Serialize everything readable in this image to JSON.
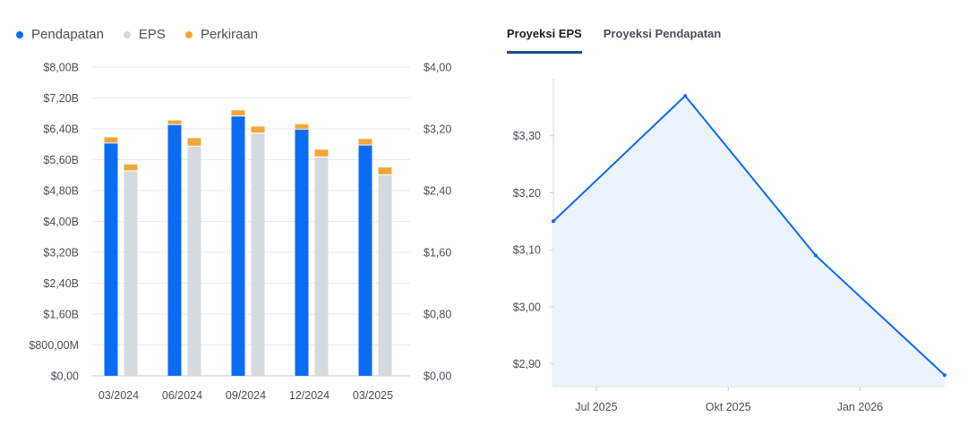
{
  "legend": {
    "items": [
      {
        "label": "Pendapatan",
        "color": "#0a6cf2"
      },
      {
        "label": "EPS",
        "color": "#d7dadd"
      },
      {
        "label": "Perkiraan",
        "color": "#f0a73a"
      }
    ]
  },
  "tabs": [
    {
      "label": "Proyeksi EPS",
      "active": true
    },
    {
      "label": "Proyeksi Pendapatan",
      "active": false
    }
  ],
  "chart_data": [
    {
      "type": "bar",
      "categories": [
        "03/2024",
        "06/2024",
        "09/2024",
        "12/2024",
        "03/2025"
      ],
      "left_axis": {
        "min": 0,
        "max": 8,
        "ticks": [
          "$0,00",
          "$800,00M",
          "$1,60B",
          "$2,40B",
          "$3,20B",
          "$4,00B",
          "$4,80B",
          "$5,60B",
          "$6,40B",
          "$7,20B",
          "$8,00B"
        ]
      },
      "right_axis": {
        "min": 0,
        "max": 4,
        "ticks": [
          "$0,00",
          "$0,80",
          "$1,60",
          "$2,40",
          "$3,20",
          "$4,00"
        ]
      },
      "series": [
        {
          "name": "Pendapatan",
          "axis": "left",
          "values": [
            6.02,
            6.5,
            6.72,
            6.38,
            5.97
          ],
          "estimates": [
            6.18,
            6.62,
            6.88,
            6.52,
            6.14
          ]
        },
        {
          "name": "EPS",
          "axis": "right",
          "values": [
            2.65,
            2.97,
            3.14,
            2.83,
            2.6
          ],
          "estimates": [
            2.74,
            3.08,
            3.23,
            2.93,
            2.7
          ]
        }
      ],
      "grid": true,
      "legend": "top-left"
    },
    {
      "type": "area",
      "x": [
        "2025-06-01",
        "2025-09-01",
        "2025-12-01",
        "2026-03-01"
      ],
      "values": [
        3.15,
        3.37,
        3.09,
        2.88
      ],
      "x_ticks": [
        "Jul 2025",
        "Okt 2025",
        "Jan 2026"
      ],
      "y_ticks": [
        "$2,90",
        "$3,00",
        "$3,10",
        "$3,20",
        "$3,30"
      ],
      "ylim": [
        2.86,
        3.4
      ],
      "color": "#0a6cf2",
      "fill": "#ebf3fd"
    }
  ]
}
